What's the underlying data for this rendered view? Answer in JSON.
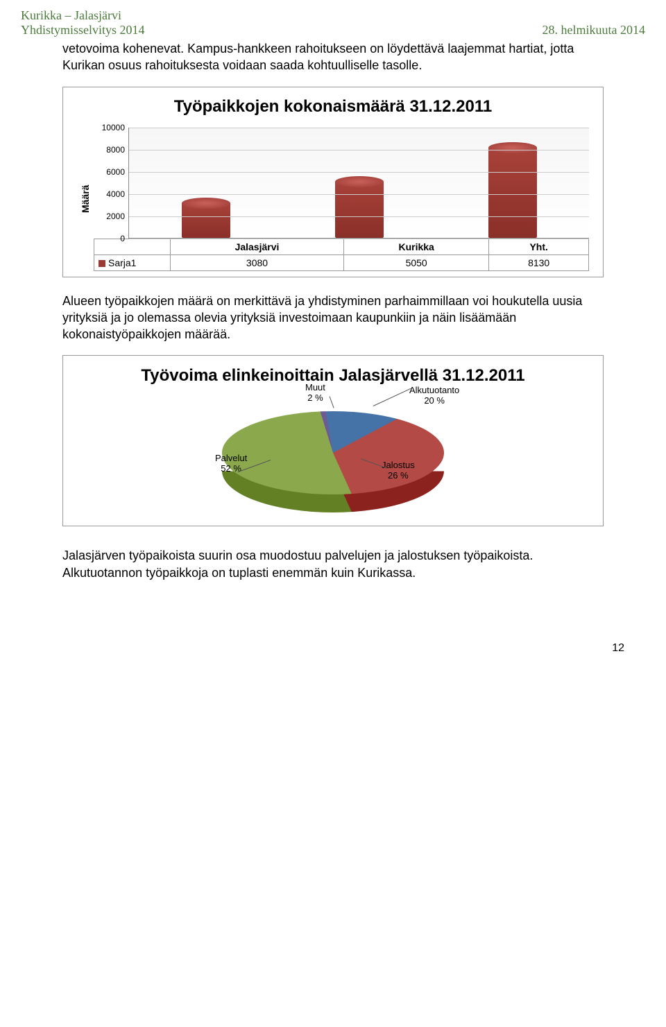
{
  "header": {
    "left_line1": "Kurikka – Jalasjärvi",
    "left_line2": "Yhdistymisselvitys 2014",
    "right": "28. helmikuuta 2014"
  },
  "para1": "vetovoima kohenevat. Kampus-hankkeen rahoitukseen on löydettävä laajemmat hartiat, jotta Kurikan osuus rahoituksesta voidaan saada kohtuulliselle tasolle.",
  "barChart": {
    "title": "Työpaikkojen kokonaismäärä 31.12.2011",
    "yAxisLabel": "Määrä",
    "yMax": 10000,
    "yTicks": [
      0,
      2000,
      4000,
      6000,
      8000,
      10000
    ],
    "categories": [
      "Jalasjärvi",
      "Kurikka",
      "Yht."
    ],
    "seriesName": "Sarja1",
    "seriesColor": "#9b3a33",
    "values": [
      3080,
      5050,
      8130
    ],
    "barFrontGradTop": "#a8423a",
    "barFrontGradBottom": "#8a2f28",
    "gridColor": "#cccccc",
    "borderColor": "#999999"
  },
  "para2": "Alueen työpaikkojen määrä on merkittävä ja yhdistyminen parhaimmillaan voi houkutella uusia yrityksiä ja jo olemassa olevia yrityksiä investoimaan kaupunkiin ja näin lisäämään kokonaistyöpaikkojen määrää.",
  "pieChart": {
    "title": "Työvoima elinkeinoittain Jalasjärvellä 31.12.2011",
    "slices": [
      {
        "label": "Alkutuotanto",
        "pctText": "20 %",
        "pct": 20,
        "color": "#4573a7"
      },
      {
        "label": "Jalostus",
        "pctText": "26 %",
        "pct": 26,
        "color": "#b44a46"
      },
      {
        "label": "Palvelut",
        "pctText": "52 %",
        "pct": 52,
        "color": "#8ba94c"
      },
      {
        "label": "Muut",
        "pctText": "2 %",
        "pct": 2,
        "color": "#6f5b94"
      }
    ],
    "sideShade": "#3a3a3a"
  },
  "para3": "Jalasjärven työpaikoista suurin osa muodostuu palvelujen ja jalostuksen työpaikoista. Alkutuotannon työpaikkoja on tuplasti enemmän kuin Kurikassa.",
  "pageNumber": "12"
}
